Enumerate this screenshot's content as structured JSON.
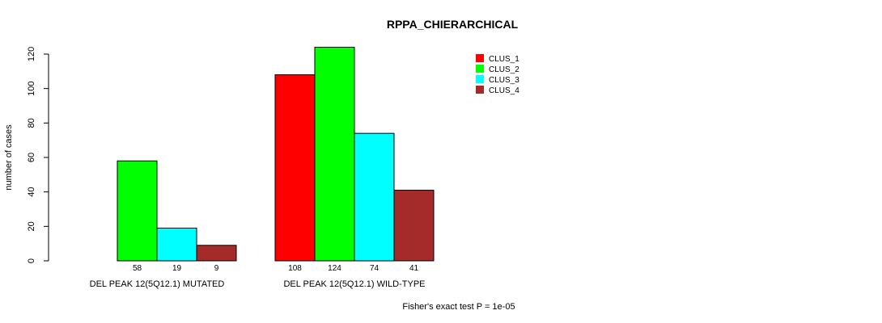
{
  "chart_data": {
    "type": "bar",
    "title": "RPPA_CHIERARCHICAL",
    "xlabel": "",
    "ylabel": "number of cases",
    "ylim": [
      0,
      120
    ],
    "yticks": [
      0,
      20,
      40,
      60,
      80,
      100,
      120
    ],
    "categories": [
      "DEL PEAK 12(5Q12.1) MUTATED",
      "DEL PEAK 12(5Q12.1) WILD-TYPE"
    ],
    "series": [
      {
        "name": "CLUS_1",
        "color": "#ff0000",
        "values": [
          0,
          108
        ],
        "labels": [
          "",
          "108"
        ]
      },
      {
        "name": "CLUS_2",
        "color": "#00ff00",
        "values": [
          58,
          124
        ],
        "labels": [
          "58",
          "124"
        ]
      },
      {
        "name": "CLUS_3",
        "color": "#00ffff",
        "values": [
          19,
          74
        ],
        "labels": [
          "19",
          "74"
        ]
      },
      {
        "name": "CLUS_4",
        "color": "#a52a2a",
        "values": [
          9,
          41
        ],
        "labels": [
          "9",
          "41"
        ]
      }
    ],
    "legend_position": "top-right",
    "grid": false,
    "annotation": "Fisher's exact test P = 1e-05"
  }
}
